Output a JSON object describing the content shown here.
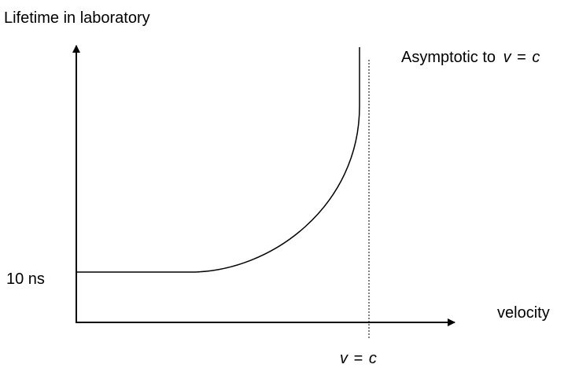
{
  "y_axis_label": "Lifetime in laboratory",
  "asymptote_label": {
    "text": "Asymptotic to",
    "variable": "v",
    "equals": "=",
    "constant": "c"
  },
  "y_marker": "10 ns",
  "x_axis_label": "velocity",
  "x_marker": {
    "variable": "v",
    "equals": "=",
    "constant": "c"
  }
}
